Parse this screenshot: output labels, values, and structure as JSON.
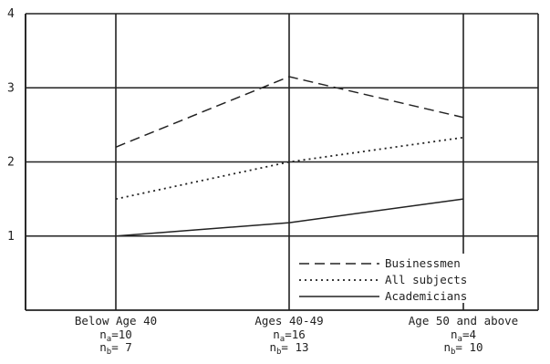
{
  "chart_data": {
    "type": "line",
    "title": "",
    "xlabel": "",
    "ylabel": "",
    "ylim": [
      0,
      4
    ],
    "yticks": [
      "1",
      "2",
      "3",
      "4"
    ],
    "categories": [
      "Below Age 40",
      "Ages 40-49",
      "Age 50 and above"
    ],
    "sample_sizes": [
      {
        "na": "10",
        "nb": "7"
      },
      {
        "na": "16",
        "nb": "13"
      },
      {
        "na": "4",
        "nb": "10"
      }
    ],
    "n_labels": {
      "a_prefix": "n",
      "a_sub": "a",
      "b_prefix": "n",
      "b_sub": "b",
      "eq": "="
    },
    "series": [
      {
        "name": "Businessmen",
        "style": "dashed",
        "values": [
          2.2,
          3.15,
          2.6
        ]
      },
      {
        "name": "All subjects",
        "style": "dotted",
        "values": [
          1.5,
          2.0,
          2.33
        ]
      },
      {
        "name": "Academicians",
        "style": "solid",
        "values": [
          1.0,
          1.18,
          1.5
        ]
      }
    ],
    "grid": true,
    "legend_position": "bottom-right",
    "colors": {
      "ink": "#222222",
      "background": "#ffffff"
    }
  }
}
